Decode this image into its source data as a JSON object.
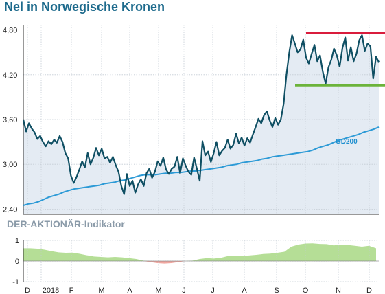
{
  "title": "Nel in Norwegische Kronen",
  "indicator_title": "DER-AKTIONÄR-Indikator",
  "colors": {
    "price_line": "#0f4f63",
    "price_fill": "#e4ebf3",
    "gd200_line": "#2c9ad6",
    "resistance": "#d91c3c",
    "support": "#6bb33a",
    "indicator_pos": "#b5de96",
    "indicator_neg": "#f0a7a0",
    "title": "#1d6a8c"
  },
  "chart_data": [
    {
      "type": "line",
      "title": "Nel in Norwegische Kronen",
      "x_tick_labels": [
        "D",
        "2018",
        "F",
        "M",
        "A",
        "M",
        "J",
        "J",
        "A",
        "S",
        "O",
        "N",
        "D"
      ],
      "y_ticks": [
        2.4,
        3.0,
        3.6,
        4.2,
        4.8
      ],
      "y_tick_labels": [
        "2,40",
        "3,00",
        "3,60",
        "4,20",
        "4,80"
      ],
      "ylim": [
        2.33,
        4.87
      ],
      "grid": true,
      "series": [
        {
          "name": "Nel",
          "y": [
            3.6,
            3.44,
            3.55,
            3.48,
            3.43,
            3.34,
            3.38,
            3.3,
            3.24,
            3.31,
            3.27,
            3.33,
            3.29,
            3.38,
            3.3,
            3.15,
            3.08,
            2.85,
            2.75,
            2.83,
            2.93,
            3.04,
            2.96,
            3.15,
            3.0,
            3.09,
            3.22,
            3.12,
            3.21,
            3.08,
            3.1,
            3.02,
            3.1,
            2.99,
            2.9,
            2.71,
            2.6,
            2.87,
            2.71,
            2.78,
            2.62,
            2.73,
            2.8,
            2.71,
            2.88,
            2.94,
            2.82,
            2.9,
            3.04,
            2.98,
            3.09,
            2.93,
            2.87,
            2.94,
            2.97,
            3.1,
            2.88,
            3.08,
            2.98,
            2.9,
            2.86,
            3.09,
            2.94,
            2.78,
            3.31,
            3.12,
            3.17,
            3.03,
            3.15,
            3.3,
            3.12,
            3.18,
            3.22,
            3.33,
            3.21,
            3.26,
            3.41,
            3.28,
            3.36,
            3.25,
            3.35,
            3.29,
            3.4,
            3.5,
            3.61,
            3.55,
            3.66,
            3.71,
            3.59,
            3.5,
            3.62,
            3.53,
            3.6,
            3.81,
            4.2,
            4.5,
            4.73,
            4.62,
            4.5,
            4.54,
            4.67,
            4.43,
            4.35,
            4.48,
            4.6,
            4.38,
            4.46,
            4.24,
            4.08,
            4.3,
            4.4,
            4.55,
            4.46,
            4.31,
            4.56,
            4.7,
            4.39,
            4.57,
            4.38,
            4.48,
            4.66,
            4.73,
            4.52,
            4.62,
            4.58,
            4.15,
            4.44,
            4.37
          ]
        },
        {
          "name": "GD200",
          "y": [
            2.45,
            2.47,
            2.48,
            2.5,
            2.53,
            2.56,
            2.58,
            2.6,
            2.63,
            2.65,
            2.67,
            2.68,
            2.69,
            2.7,
            2.71,
            2.72,
            2.74,
            2.75,
            2.76,
            2.78,
            2.79,
            2.81,
            2.83,
            2.85,
            2.86,
            2.86,
            2.86,
            2.87,
            2.88,
            2.88,
            2.89,
            2.89,
            2.9,
            2.91,
            2.91,
            2.92,
            2.93,
            2.94,
            2.95,
            2.96,
            2.98,
            2.99,
            3.0,
            3.02,
            3.03,
            3.04,
            3.05,
            3.07,
            3.08,
            3.1,
            3.11,
            3.12,
            3.13,
            3.14,
            3.15,
            3.16,
            3.17,
            3.19,
            3.22,
            3.24,
            3.26,
            3.29,
            3.32,
            3.34,
            3.36,
            3.38,
            3.4,
            3.43,
            3.45,
            3.47,
            3.5
          ]
        }
      ],
      "annotations": [
        {
          "type": "resistance",
          "y": 4.76
        },
        {
          "type": "support",
          "y": 4.06
        },
        {
          "type": "label",
          "text": "GD200"
        }
      ]
    },
    {
      "type": "area",
      "title": "DER-AKTIONÄR-Indikator",
      "y_ticks": [
        1,
        0,
        -1
      ],
      "y_tick_labels": [
        "1",
        "0",
        "-1"
      ],
      "ylim": [
        -1,
        1
      ],
      "series": [
        {
          "name": "",
          "y": [
            0.62,
            0.62,
            0.6,
            0.55,
            0.48,
            0.42,
            0.4,
            0.41,
            0.35,
            0.28,
            0.22,
            0.2,
            0.18,
            0.2,
            0.18,
            0.14,
            0.1,
            0.02,
            -0.05,
            -0.1,
            -0.12,
            -0.1,
            -0.05,
            0.0,
            0.02,
            0.1,
            0.14,
            0.12,
            0.16,
            0.24,
            0.26,
            0.25,
            0.27,
            0.3,
            0.34,
            0.36,
            0.4,
            0.45,
            0.7,
            0.8,
            0.85,
            0.86,
            0.83,
            0.82,
            0.76,
            0.8,
            0.78,
            0.74,
            0.7,
            0.74,
            0.62
          ]
        }
      ]
    }
  ]
}
